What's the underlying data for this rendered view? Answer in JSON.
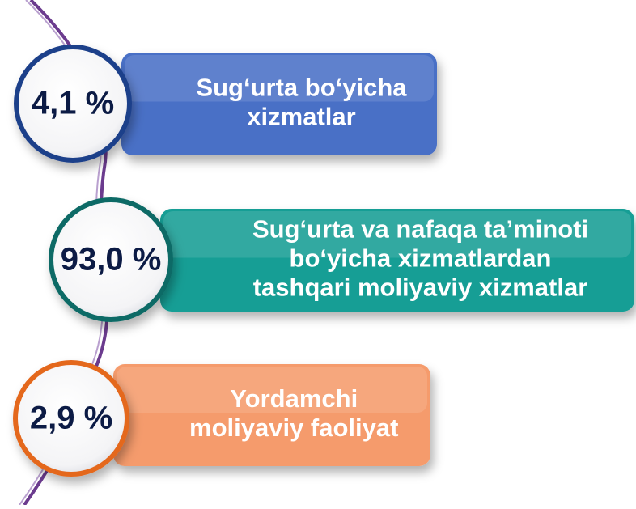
{
  "items": [
    {
      "percent": "4,1 %",
      "lines": [
        "Sug‘urta bo‘yicha",
        "xizmatlar"
      ],
      "color": "#4a70c6",
      "ring": "#1f3f8a"
    },
    {
      "percent": "93,0 %",
      "lines": [
        "Sug‘urta va nafaqa ta’minoti",
        "bo‘yicha xizmatlardan",
        "tashqari moliyaviy xizmatlar"
      ],
      "color": "#139e95",
      "ring": "#0f6b66"
    },
    {
      "percent": "2,9 %",
      "lines": [
        "Yordamchi",
        "moliyaviy faoliyat"
      ],
      "color": "#f59b6c",
      "ring": "#e4671e"
    }
  ]
}
